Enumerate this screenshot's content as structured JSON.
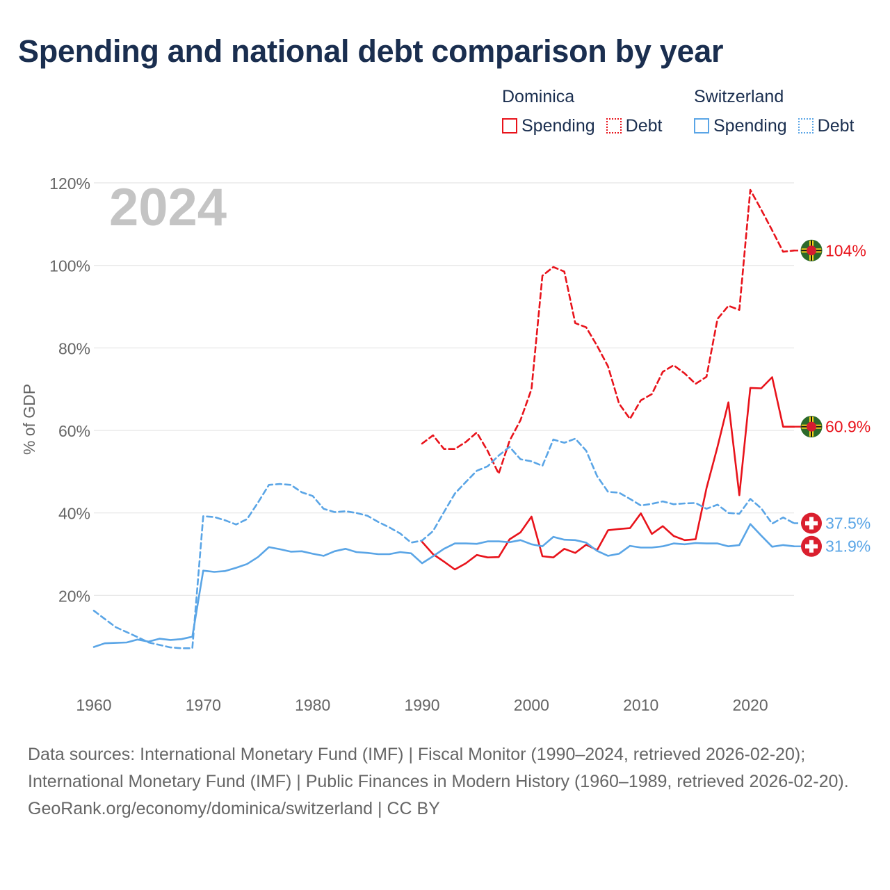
{
  "title": "Spending and national debt comparison by year",
  "legend": {
    "dominica": {
      "name": "Dominica",
      "spending_label": "Spending",
      "debt_label": "Debt",
      "color": "#e8131b"
    },
    "switzerland": {
      "name": "Switzerland",
      "spending_label": "Spending",
      "debt_label": "Debt",
      "color": "#5aa5e6"
    }
  },
  "year_watermark": "2024",
  "footer": {
    "sources": "Data sources: International Monetary Fund (IMF) | Fiscal Monitor (1990–2024, retrieved 2026-02-20); International Monetary Fund (IMF) | Public Finances in Modern History (1960–1989, retrieved 2026-02-20).",
    "credit": "GeoRank.org/economy/dominica/switzerland | CC BY"
  },
  "chart_data": {
    "type": "line",
    "title": "Spending and national debt comparison by year",
    "xlabel": "",
    "ylabel": "% of GDP",
    "xlim": [
      1960,
      2024
    ],
    "ylim": [
      0,
      120
    ],
    "x_ticks": [
      1960,
      1970,
      1980,
      1990,
      2000,
      2010,
      2020
    ],
    "y_ticks": [
      20,
      40,
      60,
      80,
      100,
      120
    ],
    "y_tick_labels": [
      "20%",
      "40%",
      "60%",
      "80%",
      "100%",
      "120%"
    ],
    "grid": true,
    "series": [
      {
        "name": "Dominica Debt",
        "country": "Dominica",
        "indicator": "Debt",
        "style": "dashed",
        "color": "#e8131b",
        "end_label": "104%",
        "x": [
          1990,
          1991,
          1992,
          1993,
          1994,
          1995,
          1996,
          1997,
          1998,
          1999,
          2000,
          2001,
          2002,
          2003,
          2004,
          2005,
          2006,
          2007,
          2008,
          2009,
          2010,
          2011,
          2012,
          2013,
          2014,
          2015,
          2016,
          2017,
          2018,
          2019,
          2020,
          2021,
          2022,
          2023,
          2024
        ],
        "values": [
          56.8,
          58.8,
          55.5,
          55.5,
          57.2,
          59.5,
          55.0,
          49.5,
          57.5,
          62.5,
          70.0,
          97.5,
          99.6,
          98.5,
          86.0,
          85.0,
          80.5,
          75.5,
          66.5,
          62.8,
          67.3,
          68.8,
          74.2,
          75.8,
          73.8,
          71.3,
          73.0,
          87.0,
          90.2,
          89.2,
          118.3,
          113.5,
          108.5,
          103.3,
          103.6
        ]
      },
      {
        "name": "Dominica Spending",
        "country": "Dominica",
        "indicator": "Spending",
        "style": "solid",
        "color": "#e8131b",
        "end_label": "60.9%",
        "x": [
          1990,
          1991,
          1992,
          1993,
          1994,
          1995,
          1996,
          1997,
          1998,
          1999,
          2000,
          2001,
          2002,
          2003,
          2004,
          2005,
          2006,
          2007,
          2008,
          2009,
          2010,
          2011,
          2012,
          2013,
          2014,
          2015,
          2016,
          2017,
          2018,
          2019,
          2020,
          2021,
          2022,
          2023,
          2024
        ],
        "values": [
          33.0,
          30.0,
          28.2,
          26.3,
          27.8,
          29.8,
          29.2,
          29.3,
          33.6,
          35.3,
          39.1,
          29.5,
          29.2,
          31.3,
          30.3,
          32.3,
          31.0,
          35.8,
          36.1,
          36.3,
          39.9,
          34.9,
          36.8,
          34.4,
          33.4,
          33.6,
          46.0,
          56.0,
          66.8,
          44.3,
          70.3,
          70.2,
          72.9,
          60.9,
          60.9
        ]
      },
      {
        "name": "Switzerland Debt",
        "country": "Switzerland",
        "indicator": "Debt",
        "style": "dashed",
        "color": "#5aa5e6",
        "end_label": "37.5%",
        "x": [
          1960,
          1961,
          1962,
          1963,
          1964,
          1965,
          1966,
          1967,
          1968,
          1969,
          1970,
          1971,
          1972,
          1973,
          1974,
          1975,
          1976,
          1977,
          1978,
          1979,
          1980,
          1981,
          1982,
          1983,
          1984,
          1985,
          1986,
          1987,
          1988,
          1989,
          1990,
          1991,
          1992,
          1993,
          1994,
          1995,
          1996,
          1997,
          1998,
          1999,
          2000,
          2001,
          2002,
          2003,
          2004,
          2005,
          2006,
          2007,
          2008,
          2009,
          2010,
          2011,
          2012,
          2013,
          2014,
          2015,
          2016,
          2017,
          2018,
          2019,
          2020,
          2021,
          2022,
          2023,
          2024
        ],
        "values": [
          16.3,
          14.3,
          12.3,
          11.1,
          9.9,
          8.6,
          8.0,
          7.4,
          7.2,
          7.2,
          39.2,
          39.0,
          38.2,
          37.2,
          38.5,
          42.5,
          46.8,
          47.0,
          46.8,
          45.0,
          44.1,
          41.0,
          40.2,
          40.4,
          40.0,
          39.3,
          37.8,
          36.5,
          35.0,
          32.8,
          33.3,
          35.6,
          40.2,
          44.7,
          47.5,
          50.2,
          51.3,
          53.9,
          56.0,
          53.0,
          52.5,
          51.4,
          57.8,
          57.0,
          58.0,
          55.1,
          48.9,
          45.1,
          44.9,
          43.4,
          41.8,
          42.2,
          42.8,
          42.1,
          42.3,
          42.4,
          41.0,
          42.0,
          40.0,
          39.8,
          43.4,
          41.1,
          37.4,
          38.9,
          37.5
        ]
      },
      {
        "name": "Switzerland Spending",
        "country": "Switzerland",
        "indicator": "Spending",
        "style": "solid",
        "color": "#5aa5e6",
        "end_label": "31.9%",
        "x": [
          1960,
          1961,
          1962,
          1963,
          1964,
          1965,
          1966,
          1967,
          1968,
          1969,
          1970,
          1971,
          1972,
          1973,
          1974,
          1975,
          1976,
          1977,
          1978,
          1979,
          1980,
          1981,
          1982,
          1983,
          1984,
          1985,
          1986,
          1987,
          1988,
          1989,
          1990,
          1991,
          1992,
          1993,
          1994,
          1995,
          1996,
          1997,
          1998,
          1999,
          2000,
          2001,
          2002,
          2003,
          2004,
          2005,
          2006,
          2007,
          2008,
          2009,
          2010,
          2011,
          2012,
          2013,
          2014,
          2015,
          2016,
          2017,
          2018,
          2019,
          2020,
          2021,
          2022,
          2023,
          2024
        ],
        "values": [
          7.5,
          8.4,
          8.5,
          8.6,
          9.3,
          8.8,
          9.5,
          9.2,
          9.4,
          10.0,
          26.0,
          25.7,
          25.9,
          26.7,
          27.6,
          29.3,
          31.7,
          31.2,
          30.6,
          30.7,
          30.1,
          29.6,
          30.7,
          31.3,
          30.5,
          30.3,
          30.0,
          30.0,
          30.5,
          30.2,
          27.8,
          29.5,
          31.3,
          32.6,
          32.6,
          32.5,
          33.1,
          33.1,
          32.9,
          33.4,
          32.4,
          31.9,
          34.2,
          33.5,
          33.4,
          32.8,
          30.8,
          29.6,
          30.1,
          32.0,
          31.6,
          31.6,
          31.9,
          32.6,
          32.4,
          32.7,
          32.6,
          32.6,
          31.9,
          32.2,
          37.3,
          34.5,
          31.8,
          32.2,
          31.9
        ]
      }
    ]
  }
}
